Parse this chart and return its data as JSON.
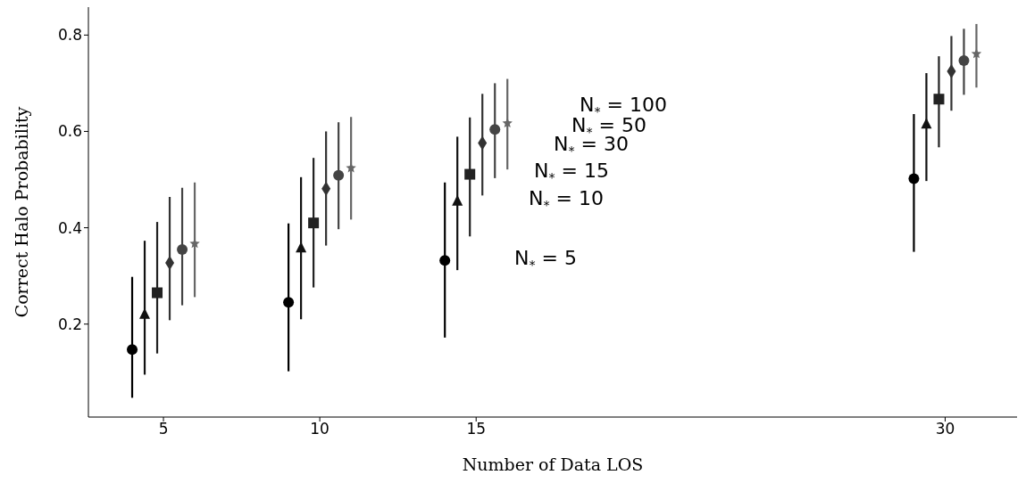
{
  "chart_data": {
    "type": "scatter",
    "xlabel": "Number of Data LOS",
    "ylabel": "Correct Halo Probability",
    "xlim": [
      2.6,
      32.3
    ],
    "xticks": [
      5,
      10,
      15,
      30
    ],
    "ylim": [
      0.007,
      0.858
    ],
    "yticks": [
      0.2,
      0.4,
      0.6,
      0.8
    ],
    "series": [
      {
        "color": "#000000",
        "marker": "circle",
        "x": [
          4,
          9,
          14,
          29
        ],
        "values": [
          0.147,
          0.245,
          0.332,
          0.502
        ],
        "errors": [
          [
            0.047,
            0.298
          ],
          [
            0.102,
            0.409
          ],
          [
            0.172,
            0.494
          ],
          [
            0.35,
            0.636
          ]
        ]
      },
      {
        "color": "#111111",
        "marker": "triangle",
        "x": [
          4.4,
          9.4,
          14.4,
          29.4
        ],
        "values": [
          0.22,
          0.358,
          0.455,
          0.615
        ],
        "errors": [
          [
            0.095,
            0.373
          ],
          [
            0.21,
            0.505
          ],
          [
            0.312,
            0.589
          ],
          [
            0.497,
            0.721
          ]
        ]
      },
      {
        "color": "#222222",
        "marker": "square",
        "x": [
          4.8,
          9.8,
          14.8,
          29.8
        ],
        "values": [
          0.265,
          0.41,
          0.511,
          0.667
        ],
        "errors": [
          [
            0.139,
            0.412
          ],
          [
            0.276,
            0.545
          ],
          [
            0.382,
            0.629
          ],
          [
            0.567,
            0.756
          ]
        ]
      },
      {
        "color": "#333333",
        "marker": "diamond",
        "x": [
          5.2,
          10.2,
          15.2,
          30.2
        ],
        "values": [
          0.327,
          0.481,
          0.576,
          0.725
        ],
        "errors": [
          [
            0.208,
            0.464
          ],
          [
            0.363,
            0.6
          ],
          [
            0.467,
            0.678
          ],
          [
            0.643,
            0.798
          ]
        ]
      },
      {
        "color": "#444444",
        "marker": "circle",
        "x": [
          5.6,
          10.6,
          15.6,
          30.6
        ],
        "values": [
          0.355,
          0.509,
          0.604,
          0.747
        ],
        "errors": [
          [
            0.239,
            0.483
          ],
          [
            0.397,
            0.619
          ],
          [
            0.503,
            0.7
          ],
          [
            0.676,
            0.813
          ]
        ]
      },
      {
        "color": "#666666",
        "marker": "star",
        "x": [
          6,
          11,
          16,
          31
        ],
        "values": [
          0.367,
          0.524,
          0.617,
          0.761
        ],
        "errors": [
          [
            0.256,
            0.494
          ],
          [
            0.417,
            0.63
          ],
          [
            0.521,
            0.709
          ],
          [
            0.691,
            0.823
          ]
        ]
      }
    ],
    "annotations": [
      "N$_{*}$ = 100",
      "N$_{*}$ = 50",
      "N$_{*}$ = 30",
      "N$_{*}$ = 15",
      "N$_{*}$ = 10",
      "N$_{*}$ = 5"
    ]
  }
}
